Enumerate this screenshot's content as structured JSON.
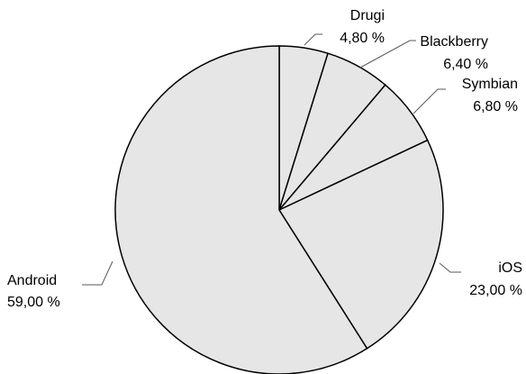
{
  "chart_data": {
    "type": "pie",
    "slices": [
      {
        "name": "Drugi",
        "value": 4.8,
        "label": "4,80 %"
      },
      {
        "name": "Blackberry",
        "value": 6.4,
        "label": "6,40 %"
      },
      {
        "name": "Symbian",
        "value": 6.8,
        "label": "6,80 %"
      },
      {
        "name": "iOS",
        "value": 23.0,
        "label": "23,00 %"
      },
      {
        "name": "Android",
        "value": 59.0,
        "label": "59,00 %"
      }
    ],
    "colors": {
      "fill": "#e6e6e6",
      "stroke": "#000000",
      "leader": "#595959"
    },
    "legend": "none"
  }
}
